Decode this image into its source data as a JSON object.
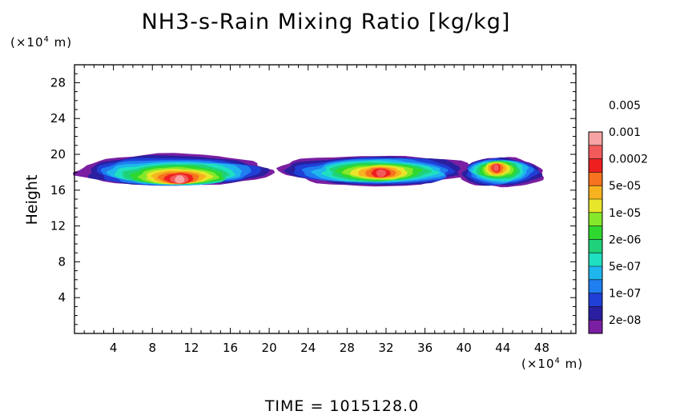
{
  "chart_data": {
    "type": "heatmap",
    "title": "NH3-s-Rain Mixing Ratio [kg/kg]",
    "ylabel": "Height",
    "y_unit": {
      "prefix": "(×10",
      "exp": "4",
      "suffix": " m)"
    },
    "x_unit": {
      "prefix": "(×10",
      "exp": "4",
      "suffix": " m)"
    },
    "xlim": [
      0,
      51.5
    ],
    "ylim": [
      0,
      30
    ],
    "x_ticks": [
      4,
      8,
      12,
      16,
      20,
      24,
      28,
      32,
      36,
      40,
      44,
      48
    ],
    "y_ticks": [
      4,
      8,
      12,
      16,
      20,
      24,
      28
    ],
    "footer": "TIME  =  1015128.0",
    "colorbar": {
      "colors": [
        "#7a1fa2",
        "#2a1fa0",
        "#1f3fd6",
        "#1f7ef0",
        "#1fb6ee",
        "#1fe0c0",
        "#1fd27a",
        "#2ed82e",
        "#86e82a",
        "#e8e62a",
        "#f7b21f",
        "#f7731f",
        "#ee1f1f",
        "#f25a5a",
        "#f7a3a3"
      ],
      "labels": [
        "2e-08",
        "1e-07",
        "5e-07",
        "2e-06",
        "1e-05",
        "5e-05",
        "0.0002",
        "0.001",
        "0.005"
      ]
    },
    "regions": [
      {
        "x_range": [
          0.3,
          20.2
        ],
        "y_range": [
          16.5,
          20.0
        ],
        "peak_value": "0.001",
        "peak_at": [
          10.8,
          17.2
        ]
      },
      {
        "x_range": [
          21.0,
          40.8
        ],
        "y_range": [
          16.5,
          19.9
        ],
        "peak_value": "0.0002",
        "peak_at": [
          31.5,
          17.9
        ]
      },
      {
        "x_range": [
          39.5,
          48.2
        ],
        "y_range": [
          16.3,
          19.6
        ],
        "peak_value": "0.0002",
        "peak_at": [
          43.3,
          18.5
        ]
      }
    ]
  }
}
